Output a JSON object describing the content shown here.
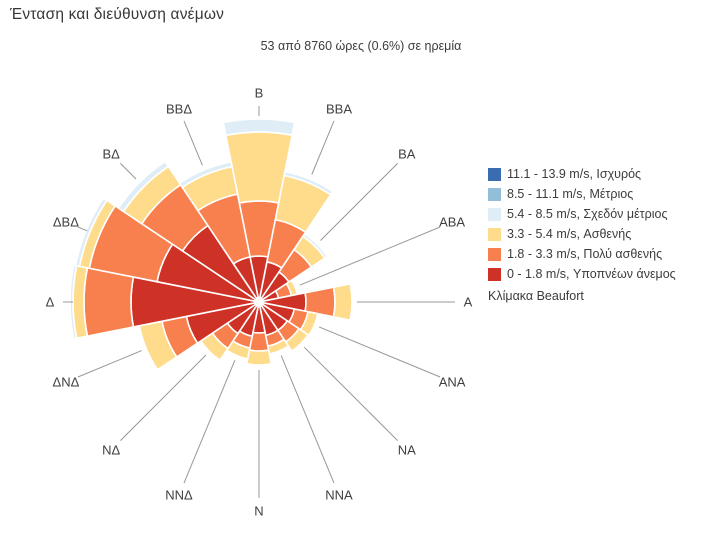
{
  "header": {
    "title": "Ένταση και διεύθυνση ανέμων",
    "subtitle": "53 από 8760 ώρες (0.6%) σε ηρεμία"
  },
  "legend": {
    "title": "Κλίμακα Beaufort",
    "entries": [
      {
        "label": "11.1 - 13.9 m/s, Ισχυρός",
        "color": "#3a6cb1"
      },
      {
        "label": "8.5 - 11.1 m/s, Μέτριος",
        "color": "#92beda"
      },
      {
        "label": "5.4 - 8.5 m/s, Σχεδόν μέτριος",
        "color": "#dfeef6"
      },
      {
        "label": "3.3 - 5.4 m/s, Ασθενής",
        "color": "#fedc8c"
      },
      {
        "label": "1.8 - 3.3 m/s, Πολύ ασθενής",
        "color": "#f8804e"
      },
      {
        "label": "0 - 1.8 m/s, Υποπνέων άνεμος",
        "color": "#ce3227"
      }
    ]
  },
  "chart_data": {
    "type": "wind-rose-stacked-polar-bar",
    "title": "Ένταση και διεύθυνση ανέμων",
    "subtitle": "53 από 8760 ώρες (0.6%) σε ηρεμία",
    "calm_hours": 53,
    "total_hours": 8760,
    "calm_percent": 0.6,
    "legend_position": "right",
    "radial_axis_note": "radial axis unlabeled in source; values are stacked radial extents in screenshot pixels, proportional to wind frequency",
    "directions": [
      "Β",
      "ΒΒΑ",
      "ΒΑ",
      "ΑΒΑ",
      "Α",
      "ΑΝΑ",
      "ΝΑ",
      "ΝΝΑ",
      "Ν",
      "ΝΝΔ",
      "ΝΔ",
      "ΔΝΔ",
      "Δ",
      "ΔΒΔ",
      "ΒΔ",
      "ΒΒΔ"
    ],
    "series": [
      {
        "name": "11.1 - 13.9 m/s, Ισχυρός",
        "color": "#3a6cb1",
        "values": [
          0,
          0,
          0,
          0,
          0,
          0,
          0,
          0,
          0,
          0,
          0,
          0,
          0,
          0,
          0,
          0
        ]
      },
      {
        "name": "8.5 - 11.1 m/s, Μέτριος",
        "color": "#92beda",
        "values": [
          0,
          0,
          0,
          0,
          0,
          0,
          0,
          0,
          0,
          0,
          0,
          0,
          0,
          0,
          0,
          0
        ]
      },
      {
        "name": "5.4 - 8.5 m/s, Σχεδόν μέτριος",
        "color": "#dfeef6",
        "values": [
          13,
          4,
          3,
          0,
          0,
          0,
          0,
          0,
          0,
          0,
          0,
          0,
          3,
          4,
          6,
          5
        ]
      },
      {
        "name": "3.3 - 5.4 m/s, Ασθενής",
        "color": "#fedc8c",
        "values": [
          69,
          45,
          16,
          6,
          17,
          10,
          11,
          8,
          14,
          11,
          14,
          23,
          11,
          10,
          22,
          28
        ]
      },
      {
        "name": "1.8 - 3.3 m/s, Πολύ ασθενής",
        "color": "#f8804e",
        "values": [
          55,
          43,
          27,
          13,
          29,
          14,
          14,
          11,
          18,
          12,
          18,
          25,
          47,
          69,
          49,
          64
        ]
      },
      {
        "name": "0 - 1.8 m/s, Υποπνέων άνεμος",
        "color": "#ce3227",
        "values": [
          42,
          37,
          32,
          16,
          43,
          32,
          30,
          30,
          27,
          31,
          34,
          70,
          124,
          100,
          88,
          42
        ]
      }
    ]
  }
}
